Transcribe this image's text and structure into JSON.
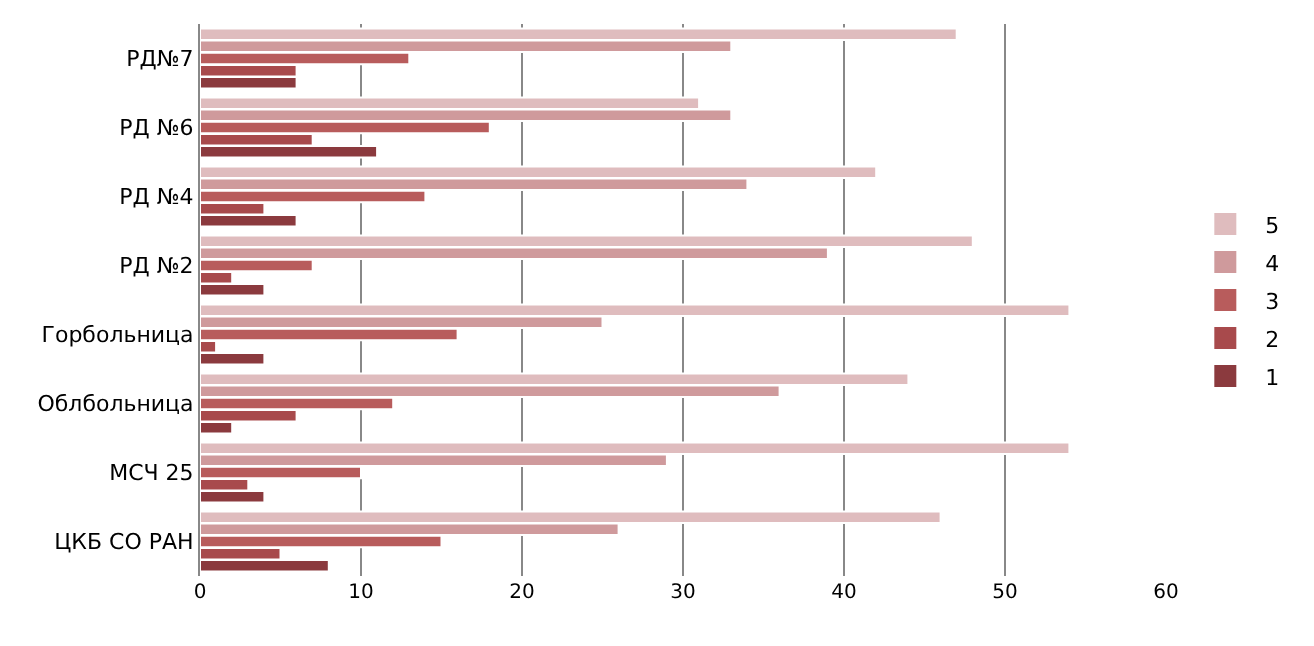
{
  "chart_data": {
    "type": "bar",
    "orientation": "horizontal",
    "categories": [
      "РД№7",
      "РД №6",
      "РД №4",
      "РД №2",
      "Горбольница",
      "Облбольница",
      "МСЧ 25",
      "ЦКБ СО РАН"
    ],
    "series": [
      {
        "name": "1",
        "color": "#8b3a3e",
        "values": [
          6,
          11,
          6,
          4,
          4,
          2,
          4,
          8
        ]
      },
      {
        "name": "2",
        "color": "#a84a4c",
        "values": [
          6,
          7,
          4,
          2,
          1,
          6,
          3,
          5
        ]
      },
      {
        "name": "3",
        "color": "#b85c5c",
        "values": [
          13,
          18,
          14,
          7,
          16,
          12,
          10,
          15
        ]
      },
      {
        "name": "4",
        "color": "#cf9a9c",
        "values": [
          33,
          33,
          34,
          39,
          25,
          36,
          29,
          26
        ]
      },
      {
        "name": "5",
        "color": "#dfbcbe",
        "values": [
          47,
          31,
          42,
          48,
          54,
          44,
          54,
          46
        ]
      }
    ],
    "xlim": [
      0,
      60
    ],
    "xticks": [
      0,
      10,
      20,
      30,
      40,
      50,
      60
    ],
    "grid": "x",
    "legend": "right"
  }
}
